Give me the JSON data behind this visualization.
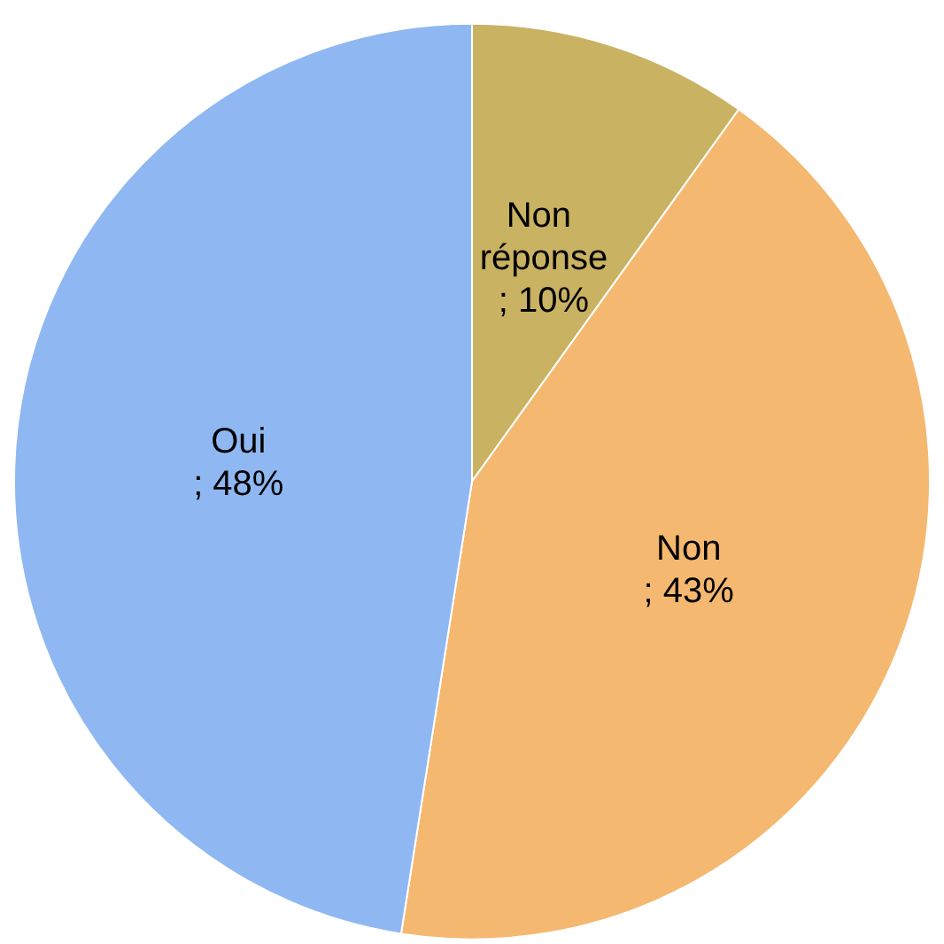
{
  "chart_data": {
    "type": "pie",
    "categories": [
      "Non réponse",
      "Non",
      "Oui"
    ],
    "values": [
      10,
      43,
      48
    ],
    "colors": [
      "#c9b262",
      "#f4b870",
      "#8fb8f2"
    ],
    "value_labels": [
      "; 10%",
      "; 43%",
      "; 48%"
    ],
    "legend": false
  }
}
